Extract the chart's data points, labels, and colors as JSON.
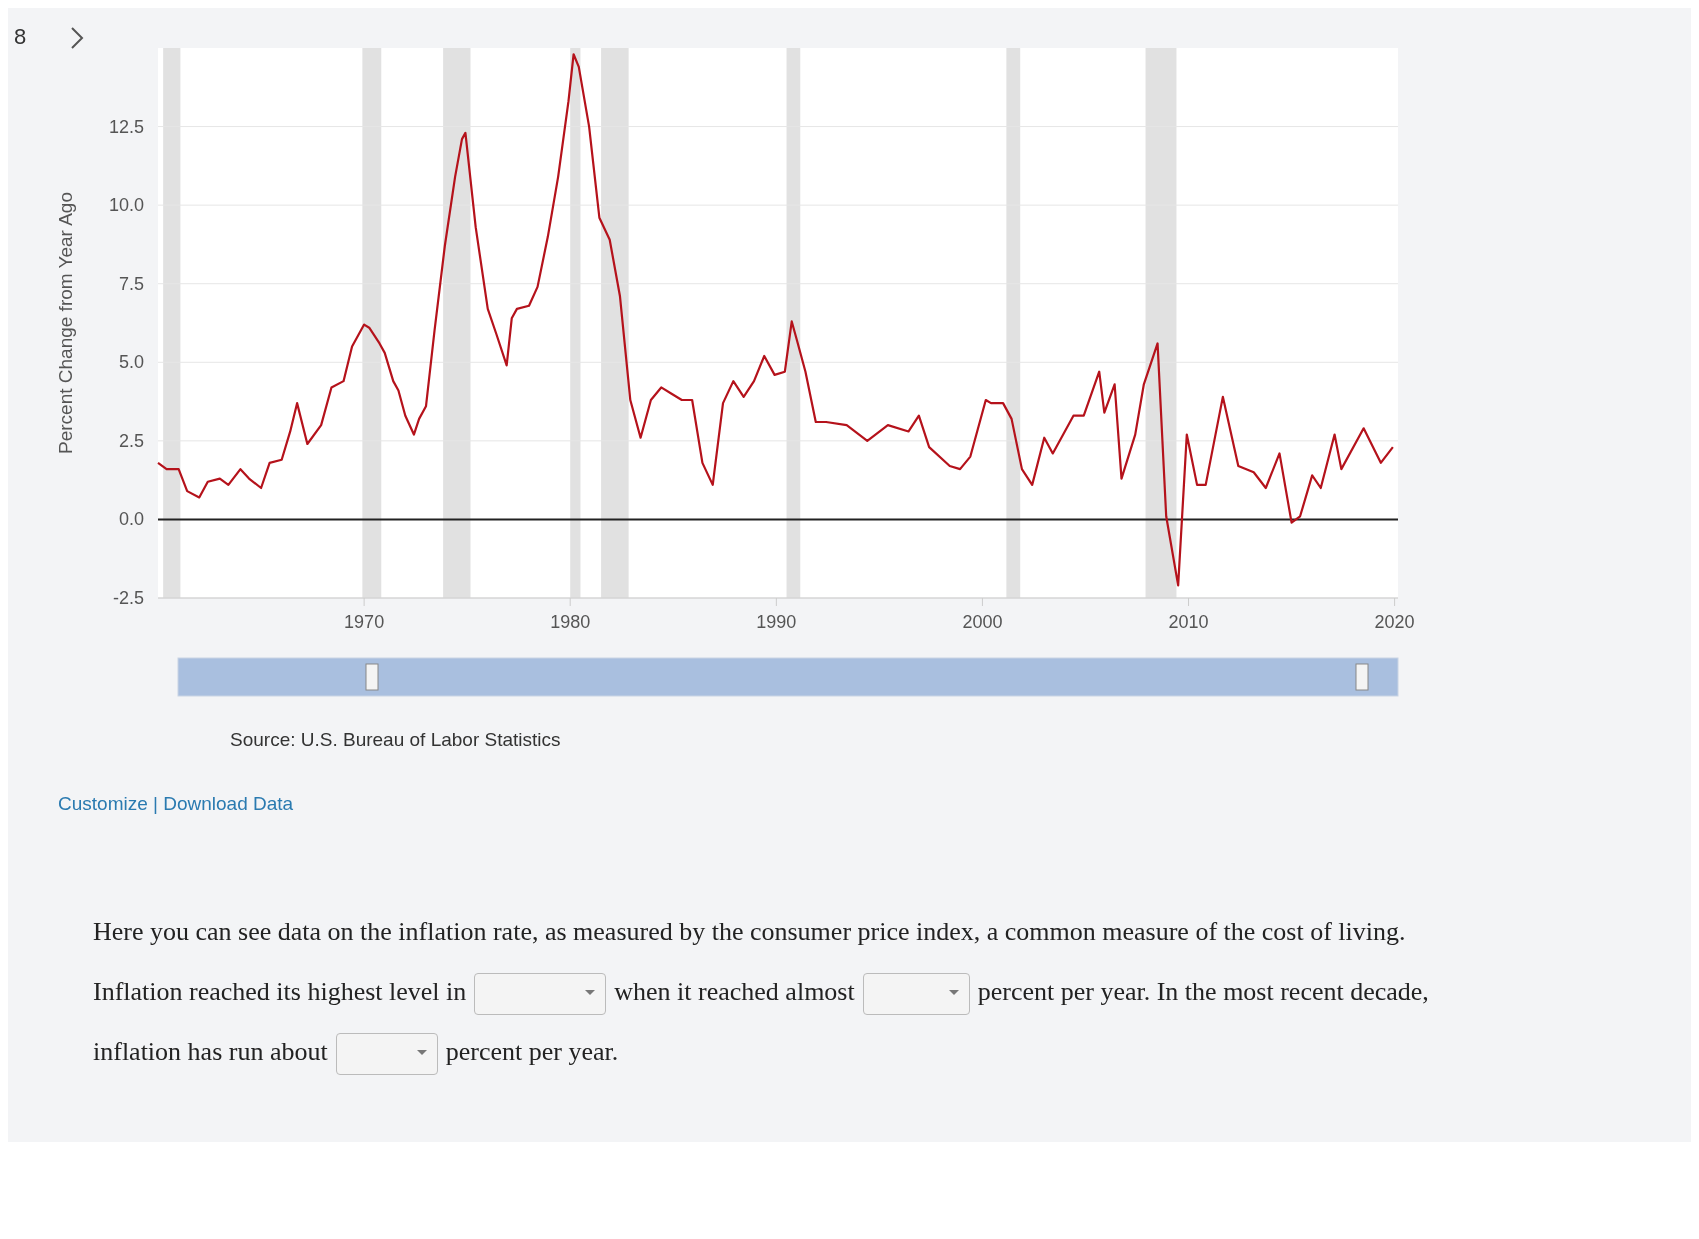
{
  "chart_data": {
    "type": "line",
    "ylabel": "Percent Change from Year Ago",
    "x": [
      "1960-01",
      "1960-06",
      "1961-01",
      "1961-06",
      "1962-01",
      "1962-06",
      "1963-01",
      "1963-06",
      "1964-01",
      "1964-06",
      "1965-01",
      "1965-06",
      "1966-01",
      "1966-06",
      "1966-10",
      "1967-04",
      "1967-12",
      "1968-06",
      "1969-01",
      "1969-06",
      "1970-01",
      "1970-04",
      "1970-10",
      "1971-01",
      "1971-06",
      "1971-09",
      "1972-01",
      "1972-06",
      "1972-09",
      "1973-01",
      "1973-06",
      "1973-12",
      "1974-06",
      "1974-10",
      "1974-12",
      "1975-06",
      "1976-01",
      "1976-06",
      "1976-12",
      "1977-03",
      "1977-06",
      "1978-01",
      "1978-06",
      "1978-12",
      "1979-06",
      "1979-12",
      "1980-03",
      "1980-06",
      "1980-12",
      "1981-06",
      "1981-12",
      "1982-06",
      "1982-12",
      "1983-06",
      "1983-12",
      "1984-06",
      "1984-12",
      "1985-06",
      "1985-12",
      "1986-06",
      "1986-12",
      "1987-06",
      "1987-12",
      "1988-06",
      "1988-12",
      "1989-06",
      "1989-12",
      "1990-06",
      "1990-10",
      "1991-01",
      "1991-06",
      "1991-12",
      "1992-06",
      "1993-06",
      "1994-06",
      "1995-06",
      "1996-06",
      "1996-12",
      "1997-06",
      "1998-06",
      "1998-12",
      "1999-06",
      "2000-03",
      "2000-06",
      "2001-01",
      "2001-06",
      "2001-12",
      "2002-06",
      "2003-01",
      "2003-06",
      "2004-06",
      "2004-12",
      "2005-09",
      "2005-12",
      "2006-06",
      "2006-10",
      "2007-06",
      "2007-11",
      "2008-07",
      "2008-12",
      "2009-07",
      "2009-12",
      "2010-06",
      "2010-11",
      "2011-09",
      "2012-06",
      "2013-03",
      "2013-10",
      "2014-06",
      "2015-01",
      "2015-06",
      "2016-01",
      "2016-06",
      "2017-02",
      "2017-06",
      "2018-07",
      "2019-05",
      "2019-12"
    ],
    "series": [
      {
        "color": "#b5121b",
        "values": [
          1.8,
          1.6,
          1.6,
          0.9,
          0.7,
          1.2,
          1.3,
          1.1,
          1.6,
          1.3,
          1.0,
          1.8,
          1.9,
          2.8,
          3.7,
          2.4,
          3.0,
          4.2,
          4.4,
          5.5,
          6.2,
          6.1,
          5.6,
          5.3,
          4.4,
          4.1,
          3.3,
          2.7,
          3.2,
          3.6,
          6.0,
          8.7,
          10.9,
          12.1,
          12.3,
          9.3,
          6.7,
          5.9,
          4.9,
          6.4,
          6.7,
          6.8,
          7.4,
          9.0,
          10.9,
          13.3,
          14.8,
          14.4,
          12.5,
          9.6,
          8.9,
          7.1,
          3.8,
          2.6,
          3.8,
          4.2,
          4.0,
          3.8,
          3.8,
          1.8,
          1.1,
          3.7,
          4.4,
          3.9,
          4.4,
          5.2,
          4.6,
          4.7,
          6.3,
          5.7,
          4.7,
          3.1,
          3.1,
          3.0,
          2.5,
          3.0,
          2.8,
          3.3,
          2.3,
          1.7,
          1.6,
          2.0,
          3.8,
          3.7,
          3.7,
          3.2,
          1.6,
          1.1,
          2.6,
          2.1,
          3.3,
          3.3,
          4.7,
          3.4,
          4.3,
          1.3,
          2.7,
          4.3,
          5.6,
          0.1,
          -2.1,
          2.7,
          1.1,
          1.1,
          3.9,
          1.7,
          1.5,
          1.0,
          2.1,
          -0.1,
          0.1,
          1.4,
          1.0,
          2.7,
          1.6,
          2.9,
          1.8,
          2.3
        ]
      }
    ],
    "xlim": [
      "1960-01",
      "2020-03"
    ],
    "xticks": [
      "1970",
      "1980",
      "1990",
      "2000",
      "2010",
      "2020"
    ],
    "ylim": [
      -2.5,
      15
    ],
    "yticks": [
      -2.5,
      {
        "value": 0,
        "label": "0.0"
      },
      2.5,
      {
        "value": 5,
        "label": "5.0"
      },
      7.5,
      {
        "value": 10,
        "label": "10.0"
      },
      12.5
    ],
    "grid": "y",
    "ref_lines": [
      {
        "axis": "y",
        "value": 0,
        "color": "#222222"
      }
    ],
    "bands": [
      {
        "axis": "x",
        "from": "1960-04",
        "to": "1961-02",
        "color": "#e1e1e1"
      },
      {
        "axis": "x",
        "from": "1969-12",
        "to": "1970-11",
        "color": "#e1e1e1"
      },
      {
        "axis": "x",
        "from": "1973-11",
        "to": "1975-03",
        "color": "#e1e1e1"
      },
      {
        "axis": "x",
        "from": "1980-01",
        "to": "1980-07",
        "color": "#e1e1e1"
      },
      {
        "axis": "x",
        "from": "1981-07",
        "to": "1982-11",
        "color": "#e1e1e1"
      },
      {
        "axis": "x",
        "from": "1990-07",
        "to": "1991-03",
        "color": "#e1e1e1"
      },
      {
        "axis": "x",
        "from": "2001-03",
        "to": "2001-11",
        "color": "#e1e1e1"
      },
      {
        "axis": "x",
        "from": "2007-12",
        "to": "2009-06",
        "color": "#e1e1e1"
      }
    ],
    "annotations": [
      "Source: U.S. Bureau of Labor Statistics",
      "Customize | Download Data",
      "8",
      "Here you can see data on the inflation rate, as measured by the consumer price index, a common measure of the cost of living. Inflation reached its highest level in",
      "when it reached almost",
      "percent per year. In the most recent decade, inflation has run about",
      "percent per year."
    ]
  }
}
